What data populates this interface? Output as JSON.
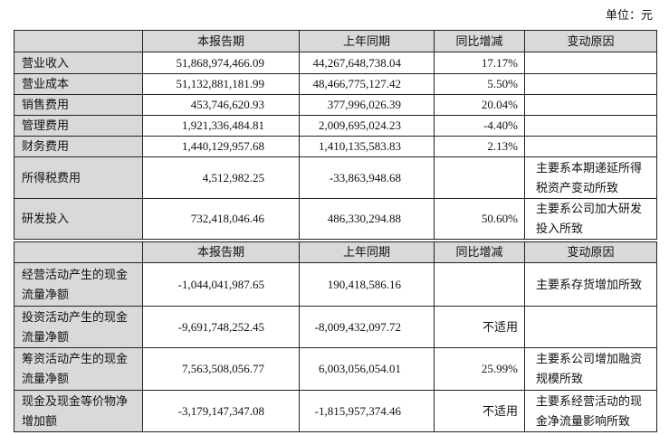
{
  "unit": "单位：元",
  "table1": {
    "header": [
      "本报告期",
      "上年同期",
      "同比增减",
      "变动原因"
    ],
    "rows": [
      {
        "item": "营业收入",
        "current": "51,868,974,466.09",
        "previous": "44,267,648,738.04",
        "change": "17.17%"
      },
      {
        "item": "营业成本",
        "current": "51,132,881,181.99",
        "previous": "48,466,775,127.42",
        "change": "5.50%"
      },
      {
        "item": "销售费用",
        "current": "453,746,620.93",
        "previous": "377,996,026.39",
        "change": "20.04%"
      },
      {
        "item": "管理费用",
        "current": "1,921,336,484.81",
        "previous": "2,009,695,024.23",
        "change": "-4.40%"
      },
      {
        "item": "财务费用",
        "current": "1,440,129,957.68",
        "previous": "1,410,135,583.83",
        "change": "2.13%"
      },
      {
        "item": "所得税费用",
        "current": "4,512,982.25",
        "previous": "-33,863,948.68",
        "reason": "主要系本期递延所得税资产变动所致"
      },
      {
        "item": "研发投入",
        "current": "732,418,046.46",
        "previous": "486,330,294.88",
        "change": "50.60%",
        "reason": "主要系公司加大研发投入所致"
      }
    ]
  },
  "table2": {
    "header": [
      "本报告期",
      "上年同期",
      "同比增减",
      "变动原因"
    ],
    "rows": [
      {
        "item": "经营活动产生的现金流量净额",
        "current": "-1,044,041,987.65",
        "previous": "190,418,586.16",
        "reason": "主要系存货增加所致"
      },
      {
        "item": "投资活动产生的现金流量净额",
        "current": "-9,691,748,252.45",
        "previous": "-8,009,432,097.72",
        "change": "不适用"
      },
      {
        "item": "筹资活动产生的现金流量净额",
        "current": "7,563,508,056.77",
        "previous": "6,003,056,054.01",
        "change": "25.99%",
        "reason": "主要系公司增加融资规模所致"
      },
      {
        "item": "现金及现金等价物净增加额",
        "current": "-3,179,147,347.08",
        "previous": "-1,815,957,374.46",
        "change": "不适用",
        "reason": "主要系经营活动的现金净流量影响所致"
      }
    ]
  }
}
